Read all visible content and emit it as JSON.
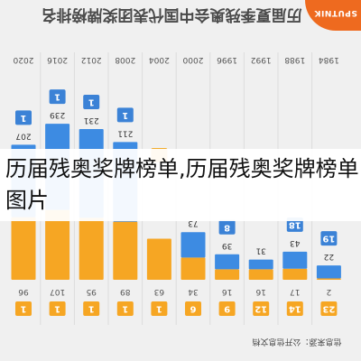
{
  "page": {
    "title": "历届夏季残奥会中国代表团奖牌榜排名",
    "logo": "SPUTNIK",
    "source": "信息来源：公开信息文档",
    "overlay": "历届残奥奖牌榜单,历届残奥奖牌榜单图片"
  },
  "colors": {
    "gold_medals": "#f6a623",
    "other_medals": "#3d8be2",
    "rank_badge": "#3b82d6",
    "hidden_rank_badge": "#f1ad2e",
    "background": "#f0f0f0"
  },
  "chart_data": {
    "type": "bar",
    "title": "历届夏季残奥会中国代表团奖牌榜排名",
    "categories": [
      "2020",
      "2016",
      "2012",
      "2008",
      "2004",
      "2000",
      "1996",
      "1992",
      "1988",
      "1984"
    ],
    "series": [
      {
        "name": "",
        "values": [
          96,
          107,
          95,
          89,
          63,
          34,
          16,
          16,
          17,
          2
        ]
      },
      {
        "name": "",
        "values": [
          207,
          239,
          231,
          211,
          null,
          73,
          39,
          31,
          43,
          22
        ]
      }
    ],
    "rank_top": [
      "1",
      "1",
      "1",
      "1",
      "",
      "",
      "8",
      "",
      "18",
      "19"
    ],
    "rank_bottom": [
      "1",
      "1",
      "1",
      "1",
      "1",
      "6",
      "9",
      "12",
      "14",
      "23"
    ],
    "ylim": [
      0,
      260
    ]
  }
}
